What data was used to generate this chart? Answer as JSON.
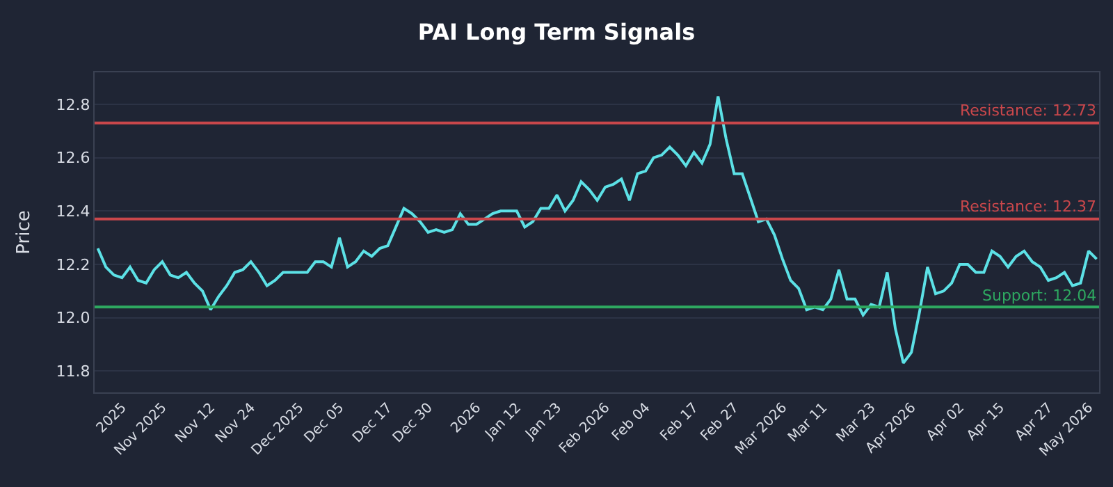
{
  "chart_data": {
    "type": "line",
    "title": "PAI Long Term Signals",
    "ylabel": "Price",
    "categories": [
      null,
      null,
      null,
      "2025",
      null,
      null,
      null,
      null,
      "Nov 2025",
      null,
      null,
      null,
      null,
      null,
      "Nov 12",
      null,
      null,
      null,
      null,
      "Nov 24",
      null,
      null,
      null,
      null,
      null,
      "Dec 2025",
      null,
      null,
      null,
      null,
      "Dec 05",
      null,
      null,
      null,
      null,
      null,
      "Dec 17",
      null,
      null,
      null,
      null,
      "Dec 30",
      null,
      null,
      null,
      null,
      null,
      "2026",
      null,
      null,
      null,
      null,
      "Jan 12",
      null,
      null,
      null,
      null,
      "Jan 23",
      null,
      null,
      null,
      null,
      null,
      "Feb 2026",
      null,
      null,
      null,
      null,
      "Feb 04",
      null,
      null,
      null,
      null,
      null,
      "Feb 17",
      null,
      null,
      null,
      null,
      "Feb 27",
      null,
      null,
      null,
      null,
      null,
      "Mar 2026",
      null,
      null,
      null,
      null,
      "Mar 11",
      null,
      null,
      null,
      null,
      null,
      "Mar 23",
      null,
      null,
      null,
      null,
      "Apr 2026",
      null,
      null,
      null,
      null,
      null,
      "Apr 02",
      null,
      null,
      null,
      null,
      "Apr 15",
      null,
      null,
      null,
      null,
      null,
      "Apr 27",
      null,
      null,
      null,
      null,
      "May 2026",
      null
    ],
    "series": [
      {
        "color": "#5ce1e6",
        "values": [
          12.26,
          12.19,
          12.16,
          12.15,
          12.19,
          12.14,
          12.13,
          12.18,
          12.21,
          12.16,
          12.15,
          12.17,
          12.13,
          12.1,
          12.03,
          12.08,
          12.12,
          12.17,
          12.18,
          12.21,
          12.17,
          12.12,
          12.14,
          12.17,
          12.17,
          12.17,
          12.17,
          12.21,
          12.21,
          12.19,
          12.3,
          12.19,
          12.21,
          12.25,
          12.23,
          12.26,
          12.27,
          12.34,
          12.41,
          12.39,
          12.36,
          12.32,
          12.33,
          12.32,
          12.33,
          12.39,
          12.35,
          12.35,
          12.37,
          12.39,
          12.4,
          12.4,
          12.4,
          12.34,
          12.36,
          12.41,
          12.41,
          12.46,
          12.4,
          12.44,
          12.51,
          12.48,
          12.44,
          12.49,
          12.5,
          12.52,
          12.44,
          12.54,
          12.55,
          12.6,
          12.61,
          12.64,
          12.61,
          12.57,
          12.62,
          12.58,
          12.65,
          12.83,
          12.67,
          12.54,
          12.54,
          12.45,
          12.36,
          12.37,
          12.31,
          12.22,
          12.14,
          12.11,
          12.03,
          12.04,
          12.03,
          12.07,
          12.18,
          12.07,
          12.07,
          12.01,
          12.05,
          12.04,
          12.17,
          11.96,
          11.83,
          11.87,
          12.02,
          12.19,
          12.09,
          12.1,
          12.13,
          12.2,
          12.2,
          12.17,
          12.17,
          12.25,
          12.23,
          12.19,
          12.23,
          12.25,
          12.21,
          12.19,
          12.14,
          12.15,
          12.17,
          12.12,
          12.13,
          12.25,
          12.22
        ]
      }
    ],
    "ylim": [
      11.72,
      12.92
    ],
    "yticks": [
      {
        "value": 11.8,
        "label": "11.8"
      },
      {
        "value": 12.0,
        "label": "12.0"
      },
      {
        "value": 12.2,
        "label": "12.2"
      },
      {
        "value": 12.4,
        "label": "12.4"
      },
      {
        "value": 12.6,
        "label": "12.6"
      },
      {
        "value": 12.8,
        "label": "12.8"
      }
    ],
    "ref_lines": [
      {
        "axis": "y",
        "value": 12.73,
        "label": "Resistance: 12.73",
        "color": "#c9474b"
      },
      {
        "axis": "y",
        "value": 12.37,
        "label": "Resistance: 12.37",
        "color": "#c9474b"
      },
      {
        "axis": "y",
        "value": 12.04,
        "label": "Support: 12.04",
        "color": "#2ea860"
      }
    ],
    "grid": "y",
    "marker": "none",
    "line_style": "solid"
  }
}
